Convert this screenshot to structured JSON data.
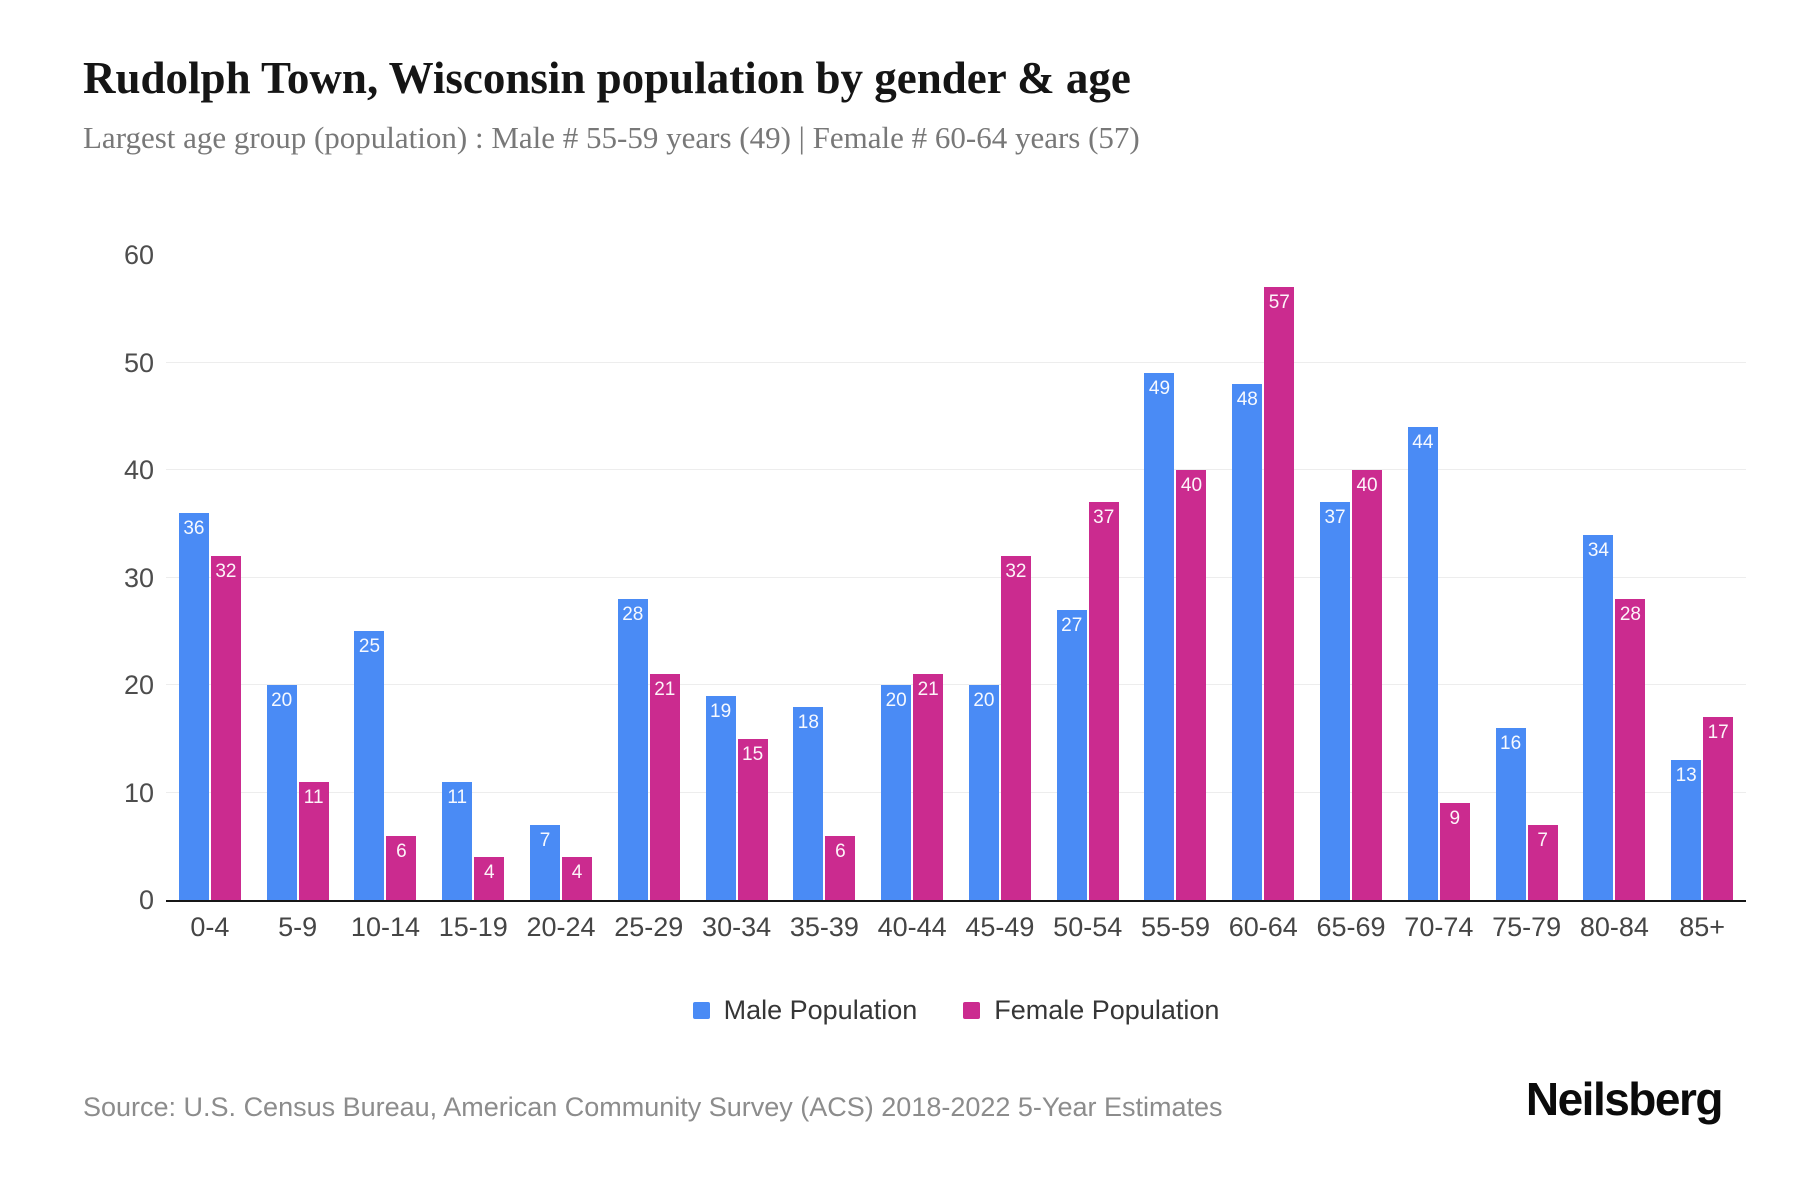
{
  "header": {
    "title": "Rudolph Town, Wisconsin population by gender & age",
    "subtitle": "Largest age group (population) : Male # 55-59 years (49) | Female # 60-64 years (57)"
  },
  "chart_data": {
    "type": "bar",
    "title": "Rudolph Town, Wisconsin population by gender & age",
    "subtitle": "Largest age group (population) : Male # 55-59 years (49) | Female # 60-64 years (57)",
    "categories": [
      "0-4",
      "5-9",
      "10-14",
      "15-19",
      "20-24",
      "25-29",
      "30-34",
      "35-39",
      "40-44",
      "45-49",
      "50-54",
      "55-59",
      "60-64",
      "65-69",
      "70-74",
      "75-79",
      "80-84",
      "85+"
    ],
    "series": [
      {
        "name": "Male Population",
        "color": "#4a8bf5",
        "values": [
          36,
          20,
          25,
          11,
          7,
          28,
          19,
          18,
          20,
          20,
          27,
          49,
          48,
          37,
          44,
          16,
          34,
          13
        ]
      },
      {
        "name": "Female Population",
        "color": "#cb2b8f",
        "values": [
          32,
          11,
          6,
          4,
          4,
          21,
          15,
          6,
          21,
          32,
          37,
          40,
          57,
          40,
          9,
          7,
          28,
          17
        ]
      }
    ],
    "xlabel": "",
    "ylabel": "",
    "ylim": [
      0,
      60
    ],
    "yticks": [
      0,
      10,
      20,
      30,
      40,
      50,
      60
    ],
    "grid": true,
    "legend_position": "bottom"
  },
  "footer": {
    "source": "Source: U.S. Census Bureau, American Community Survey (ACS) 2018-2022 5-Year Estimates",
    "brand": "Neilsberg"
  }
}
